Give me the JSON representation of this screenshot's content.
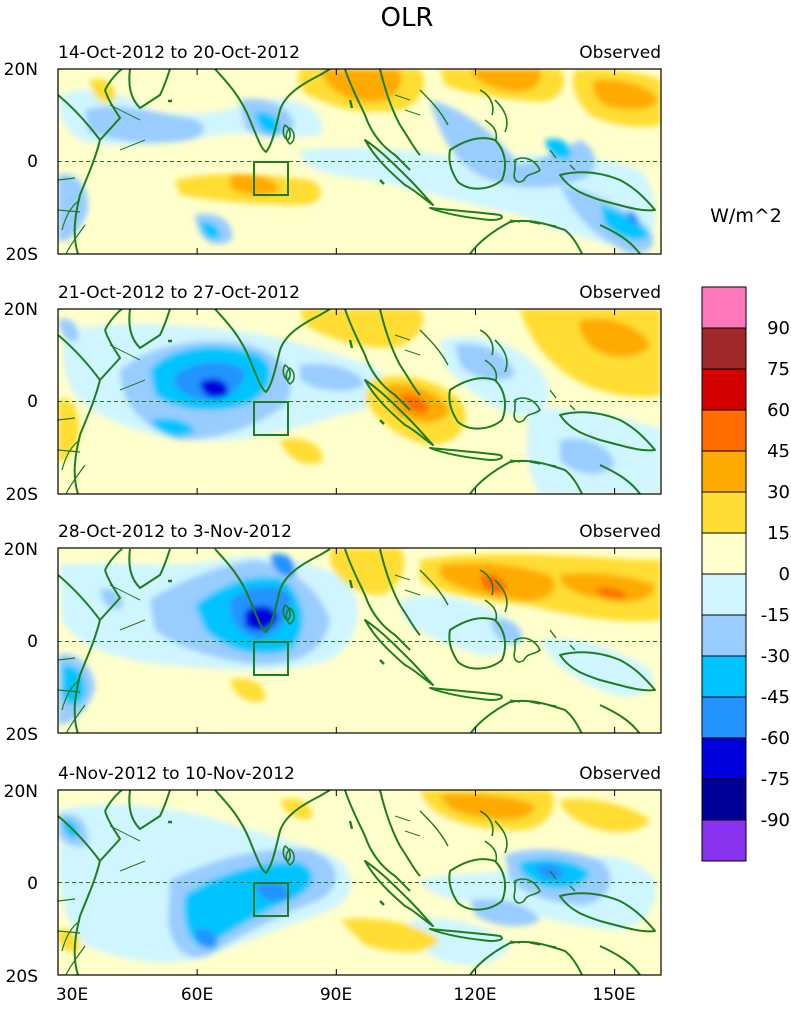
{
  "figure": {
    "title": "OLR",
    "units": "W/m^2"
  },
  "x_axis": {
    "ticks": [
      "30E",
      "60E",
      "90E",
      "120E",
      "150E"
    ],
    "tick_values": [
      30,
      60,
      90,
      120,
      150
    ]
  },
  "y_axis": {
    "ticks": [
      "20N",
      "0",
      "20S"
    ],
    "tick_values": [
      20,
      0,
      -20
    ]
  },
  "panels": [
    {
      "period": "14-Oct-2012 to 20-Oct-2012",
      "label": "Observed"
    },
    {
      "period": "21-Oct-2012 to 27-Oct-2012",
      "label": "Observed"
    },
    {
      "period": "28-Oct-2012 to 3-Nov-2012",
      "label": "Observed"
    },
    {
      "period": "4-Nov-2012 to 10-Nov-2012",
      "label": "Observed"
    }
  ],
  "colorbar": {
    "labels": [
      "90",
      "75",
      "60",
      "45",
      "30",
      "15",
      "0",
      "-15",
      "-30",
      "-45",
      "-60",
      "-75",
      "-90"
    ],
    "colors": [
      "#ff77bb",
      "#a02828",
      "#d40000",
      "#ff6d00",
      "#ffaa00",
      "#ffdd33",
      "#ffffcc",
      "#cff5ff",
      "#99ccff",
      "#00c4ff",
      "#2293ff",
      "#0000dd",
      "#000099",
      "#8833ee"
    ]
  },
  "style": {
    "coast": "#1e7e1e",
    "equator": "#1e7e1e"
  }
}
